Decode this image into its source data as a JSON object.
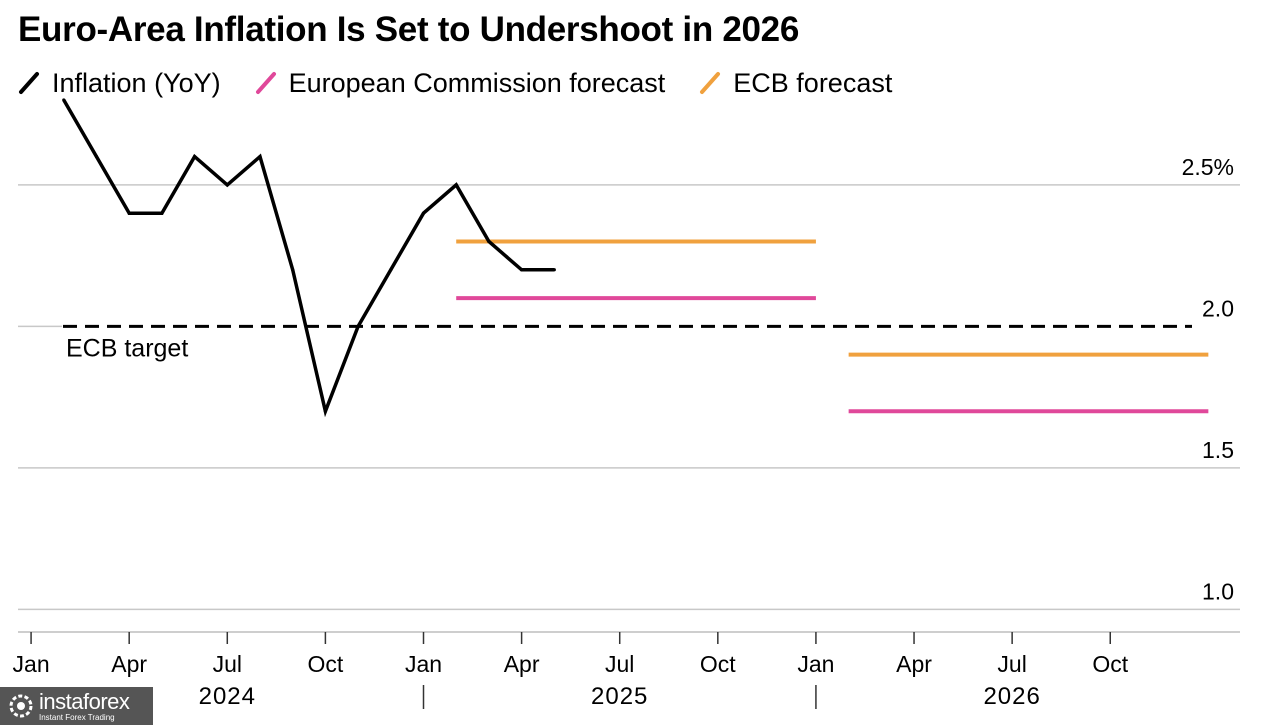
{
  "chart_data": {
    "type": "line",
    "title": "Euro-Area Inflation Is Set to Undershoot in 2026",
    "legend": [
      {
        "label": "Inflation (YoY)",
        "color": "#000000"
      },
      {
        "label": "European Commission forecast",
        "color": "#e0489a"
      },
      {
        "label": "ECB forecast",
        "color": "#f0a13e"
      }
    ],
    "y_ticks": [
      {
        "value": 2.5,
        "label": "2.5%"
      },
      {
        "value": 2.0,
        "label": "2.0"
      },
      {
        "value": 1.5,
        "label": "1.5"
      },
      {
        "value": 1.0,
        "label": "1.0"
      }
    ],
    "ylim": [
      0.92,
      2.8
    ],
    "x_range_months": [
      -0.4,
      35.5
    ],
    "x_ticks": [
      {
        "month": 0,
        "label": "Jan"
      },
      {
        "month": 3,
        "label": "Apr"
      },
      {
        "month": 6,
        "label": "Jul"
      },
      {
        "month": 9,
        "label": "Oct"
      },
      {
        "month": 12,
        "label": "Jan"
      },
      {
        "month": 15,
        "label": "Apr"
      },
      {
        "month": 18,
        "label": "Jul"
      },
      {
        "month": 21,
        "label": "Oct"
      },
      {
        "month": 24,
        "label": "Jan"
      },
      {
        "month": 27,
        "label": "Apr"
      },
      {
        "month": 30,
        "label": "Jul"
      },
      {
        "month": 33,
        "label": "Oct"
      }
    ],
    "years": [
      {
        "label": "2024",
        "start": 0,
        "end": 12
      },
      {
        "label": "2025",
        "start": 12,
        "end": 24
      },
      {
        "label": "2026",
        "start": 24,
        "end": 36
      }
    ],
    "series": [
      {
        "name": "Inflation (YoY)",
        "color": "#000000",
        "x": [
          1,
          2,
          3,
          4,
          5,
          6,
          7,
          8,
          9,
          10,
          11,
          12,
          13,
          14,
          15,
          16
        ],
        "values": [
          2.8,
          2.6,
          2.4,
          2.4,
          2.6,
          2.5,
          2.6,
          2.2,
          1.7,
          2.0,
          2.2,
          2.4,
          2.5,
          2.3,
          2.2,
          2.2
        ]
      }
    ],
    "forecasts": [
      {
        "name": "ECB forecast",
        "period": "2025",
        "value": 2.3,
        "x_start": 13,
        "x_end": 24,
        "color": "#f0a13e"
      },
      {
        "name": "European Commission forecast",
        "period": "2025",
        "value": 2.1,
        "x_start": 13,
        "x_end": 24,
        "color": "#e0489a"
      },
      {
        "name": "ECB forecast",
        "period": "2026",
        "value": 1.9,
        "x_start": 25,
        "x_end": 36,
        "color": "#f0a13e"
      },
      {
        "name": "European Commission forecast",
        "period": "2026",
        "value": 1.7,
        "x_start": 25,
        "x_end": 36,
        "color": "#e0489a"
      }
    ],
    "target": {
      "label": "ECB target",
      "value": 2.0
    }
  },
  "watermark": {
    "name": "instaforex",
    "sub": "Instant Forex Trading"
  }
}
